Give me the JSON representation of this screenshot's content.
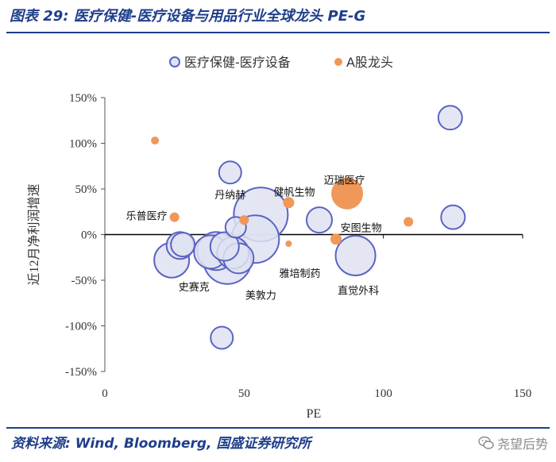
{
  "header": {
    "title": "图表 29:  医疗保健-医疗设备与用品行业全球龙头 PE-G"
  },
  "footer": {
    "source": "资料来源:  Wind,  Bloomberg,  国盛证券研究所",
    "watermark": "尧望后势",
    "watermark_icon": "wechat-icon"
  },
  "chart_data": {
    "type": "scatter",
    "xlabel": "PE",
    "ylabel": "近12月净利润增速",
    "xlim": [
      0,
      150
    ],
    "ylim": [
      -150,
      150
    ],
    "x_ticks": [
      "0",
      "50",
      "100",
      "150"
    ],
    "y_ticks": [
      "150%",
      "100%",
      "50%",
      "0%",
      "-50%",
      "-100%",
      "-150%"
    ],
    "grid": false,
    "legend": {
      "placement": "top"
    },
    "series": [
      {
        "name": "医疗保健-医疗设备",
        "marker": "bubble",
        "color_fill": "#dfe3f1",
        "color_edge": "#5a63c4",
        "points": [
          {
            "x": 124,
            "y": 128,
            "size": 15
          },
          {
            "x": 125,
            "y": 19,
            "size": 15
          },
          {
            "x": 90,
            "y": -23,
            "size": 25
          },
          {
            "x": 77,
            "y": 16,
            "size": 16
          },
          {
            "x": 56,
            "y": 22,
            "size": 34
          },
          {
            "x": 54,
            "y": -5,
            "size": 30
          },
          {
            "x": 45,
            "y": 68,
            "size": 14
          },
          {
            "x": 47,
            "y": 8,
            "size": 13
          },
          {
            "x": 43,
            "y": -13,
            "size": 18
          },
          {
            "x": 46,
            "y": -20,
            "size": 20
          },
          {
            "x": 48,
            "y": -26,
            "size": 19
          },
          {
            "x": 40,
            "y": -18,
            "size": 24
          },
          {
            "x": 44,
            "y": -28,
            "size": 30
          },
          {
            "x": 38,
            "y": -19,
            "size": 21
          },
          {
            "x": 28,
            "y": -11,
            "size": 15
          },
          {
            "x": 27,
            "y": -12,
            "size": 17
          },
          {
            "x": 24,
            "y": -28,
            "size": 22
          },
          {
            "x": 42,
            "y": -113,
            "size": 14
          }
        ]
      },
      {
        "name": "A股龙头",
        "marker": "circle",
        "color": "#f0975a",
        "points": [
          {
            "x": 18,
            "y": 103,
            "size": 5
          },
          {
            "x": 25,
            "y": 19,
            "size": 6
          },
          {
            "x": 50,
            "y": 16,
            "size": 6
          },
          {
            "x": 66,
            "y": 35,
            "size": 7
          },
          {
            "x": 66,
            "y": -10,
            "size": 4
          },
          {
            "x": 83,
            "y": -5,
            "size": 7
          },
          {
            "x": 87,
            "y": 45,
            "size": 20
          },
          {
            "x": 109,
            "y": 14,
            "size": 6
          }
        ]
      }
    ],
    "annotations": [
      {
        "text": "迈瑞医疗",
        "x": 86,
        "y": 60
      },
      {
        "text": "健帆生物",
        "x": 68,
        "y": 47
      },
      {
        "text": "丹纳赫",
        "x": 45,
        "y": 44
      },
      {
        "text": "乐普医疗",
        "x": 15,
        "y": 21
      },
      {
        "text": "安图生物",
        "x": 92,
        "y": 8
      },
      {
        "text": "雅培制药",
        "x": 70,
        "y": -42
      },
      {
        "text": "史赛克",
        "x": 32,
        "y": -57
      },
      {
        "text": "美敦力",
        "x": 56,
        "y": -66
      },
      {
        "text": "直觉外科",
        "x": 91,
        "y": -61
      }
    ]
  }
}
